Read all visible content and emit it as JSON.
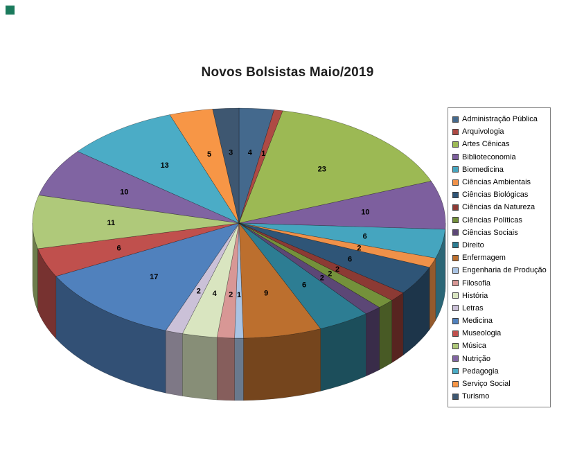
{
  "decorations": {
    "corner_square_color": "#1a7a5c"
  },
  "chart_data": {
    "type": "pie",
    "style": "3d",
    "title": "Novos Bolsistas Maio/2019",
    "legend_position": "right",
    "data_labels": "values",
    "categories": [
      "Administração Pública",
      "Arquivologia",
      "Artes Cênicas",
      "Biblioteconomia",
      "Biomedicina",
      "Ciências Ambientais",
      "Ciências Biológicas",
      "Ciências da Natureza",
      "Ciências Políticas",
      "Ciências Sociais",
      "Direito",
      "Enfermagem",
      "Engenharia de Produção",
      "Filosofia",
      "História",
      "Letras",
      "Medicina",
      "Museologia",
      "Música",
      "Nutrição",
      "Pedagogia",
      "Serviço Social",
      "Turismo"
    ],
    "values": [
      4,
      1,
      23,
      10,
      6,
      2,
      6,
      2,
      2,
      2,
      6,
      9,
      1,
      2,
      4,
      2,
      17,
      6,
      11,
      10,
      13,
      5,
      3
    ],
    "colors": [
      "#44698D",
      "#AE4A44",
      "#9CB954",
      "#7D5F9E",
      "#45A5BF",
      "#EF9149",
      "#2F5577",
      "#8C3A34",
      "#74913B",
      "#5C4776",
      "#2D7D93",
      "#BC6F2E",
      "#A9C3E3",
      "#D89795",
      "#D9E5C0",
      "#CBC1D8",
      "#5081BD",
      "#C0504D",
      "#AFC97A",
      "#8064A2",
      "#4BACC6",
      "#F79646",
      "#3E5771"
    ]
  }
}
